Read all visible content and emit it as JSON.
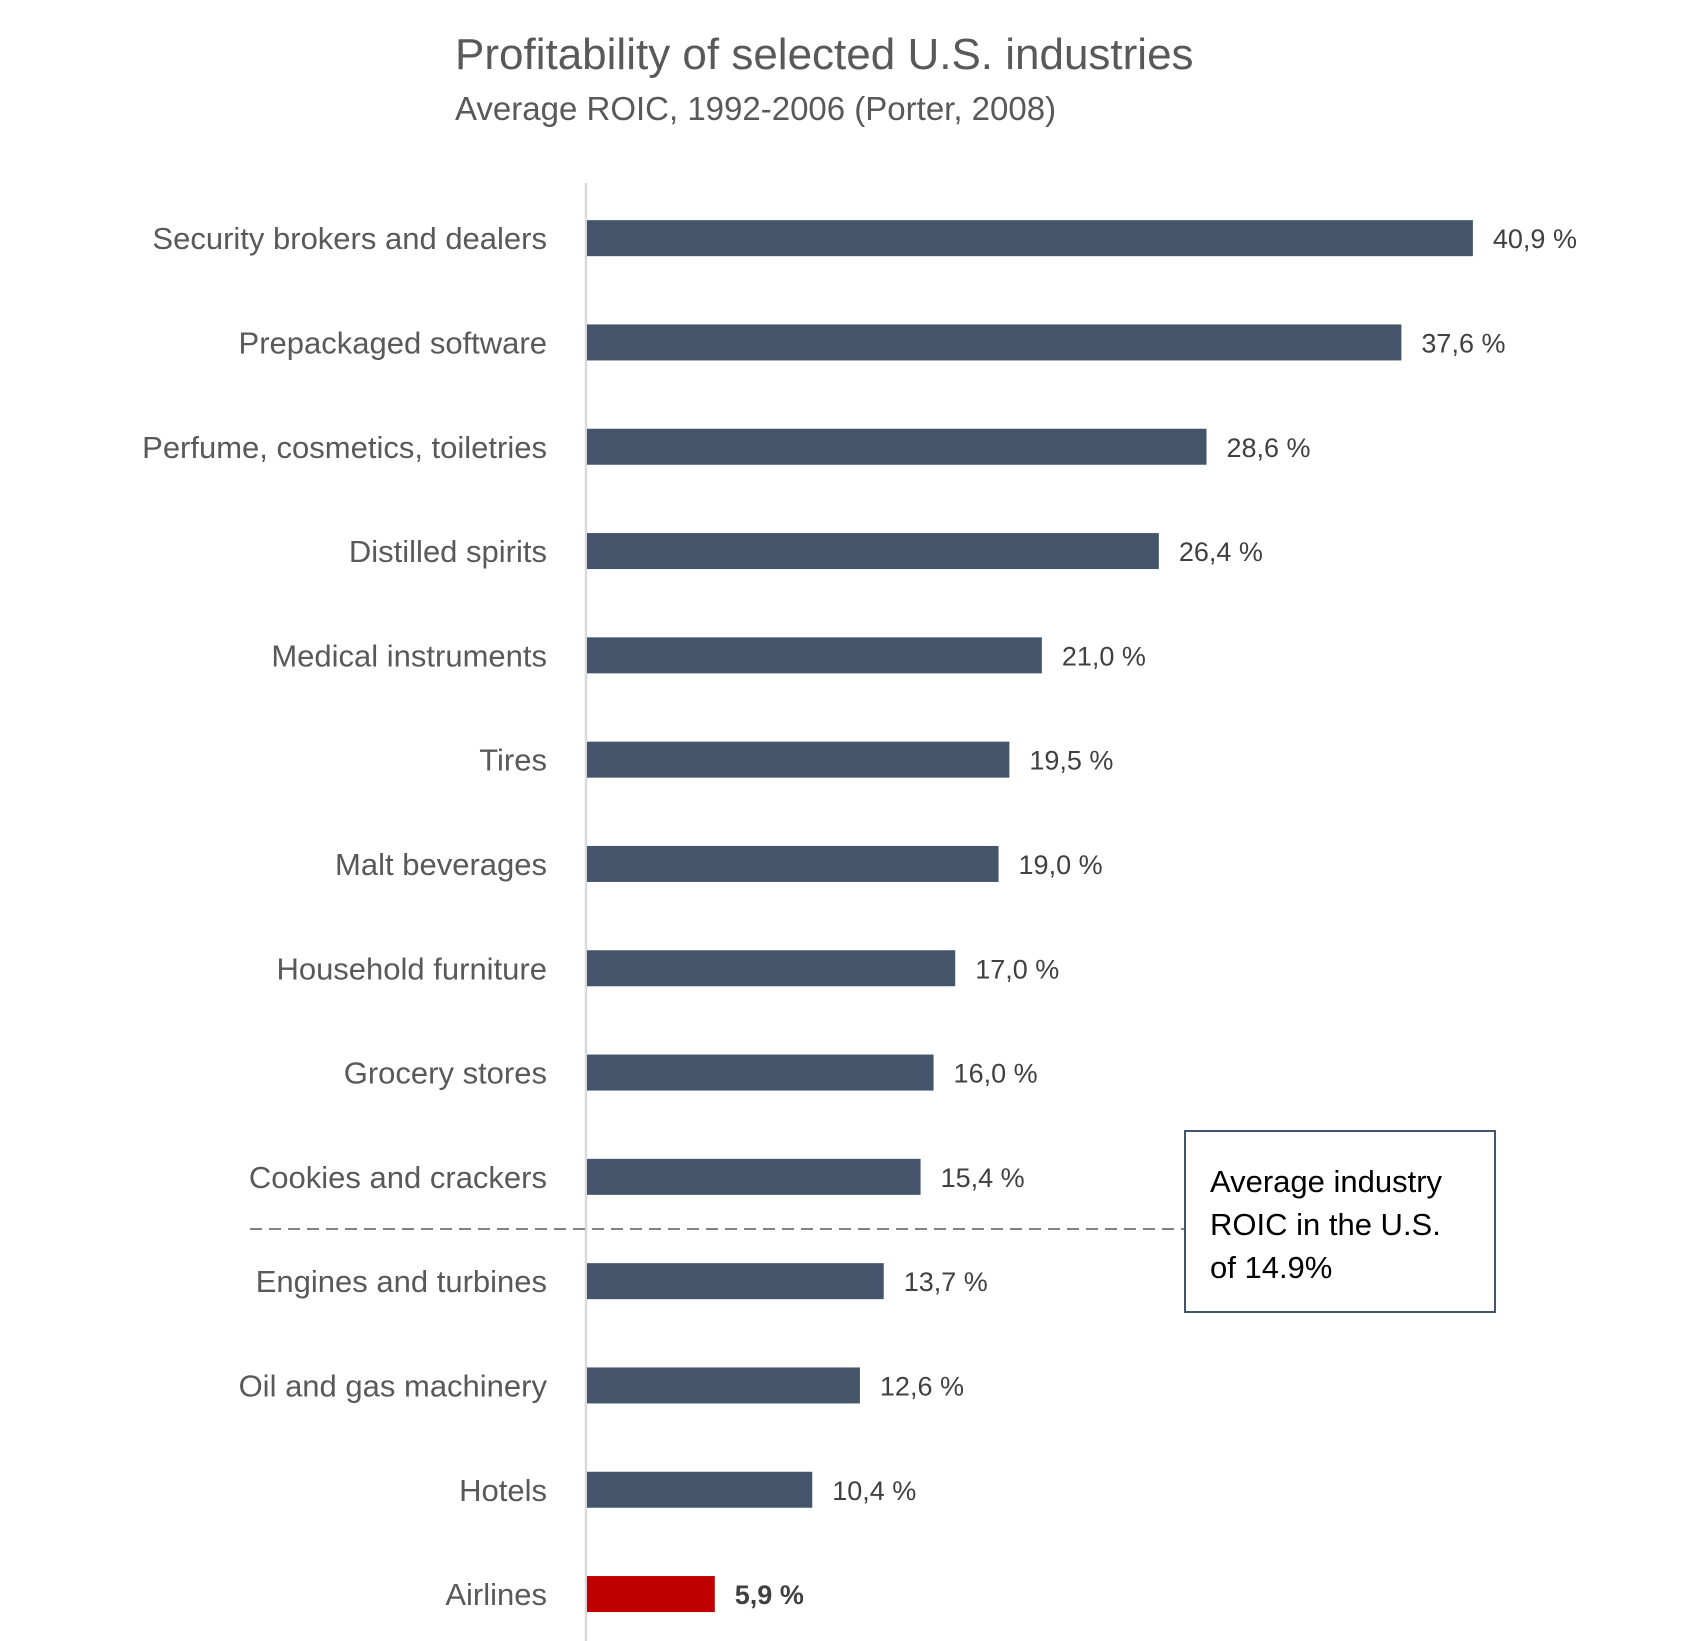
{
  "chart_data": {
    "type": "bar",
    "orientation": "horizontal",
    "title": "Profitability of selected U.S. industries",
    "subtitle": "Average ROIC, 1992-2006 (Porter, 2008)",
    "categories": [
      "Security brokers and dealers",
      "Prepackaged software",
      "Perfume, cosmetics, toiletries",
      "Distilled spirits",
      "Medical instruments",
      "Tires",
      "Malt beverages",
      "Household furniture",
      "Grocery stores",
      "Cookies and crackers",
      "Engines and turbines",
      "Oil and gas machinery",
      "Hotels",
      "Airlines"
    ],
    "values": [
      40.9,
      37.6,
      28.6,
      26.4,
      21.0,
      19.5,
      19.0,
      17.0,
      16.0,
      15.4,
      13.7,
      12.6,
      10.4,
      5.9
    ],
    "value_labels": [
      "40,9 %",
      "37,6 %",
      "28,6 %",
      "26,4 %",
      "21,0 %",
      "19,5 %",
      "19,0 %",
      "17,0 %",
      "16,0 %",
      "15,4 %",
      "13,7 %",
      "12,6 %",
      "10,4 %",
      "5,9 %"
    ],
    "highlight_category": "Airlines",
    "average_line_value": 14.9,
    "annotation_lines": [
      "Average industry",
      "ROIC in the U.S.",
      "of 14.9%"
    ],
    "colors": {
      "bar": "#44546a",
      "highlight": "#c00000",
      "axis": "#d9d9d9",
      "text": "#595959"
    },
    "xlim": [
      0,
      45
    ],
    "grid": false,
    "legend": "none"
  }
}
